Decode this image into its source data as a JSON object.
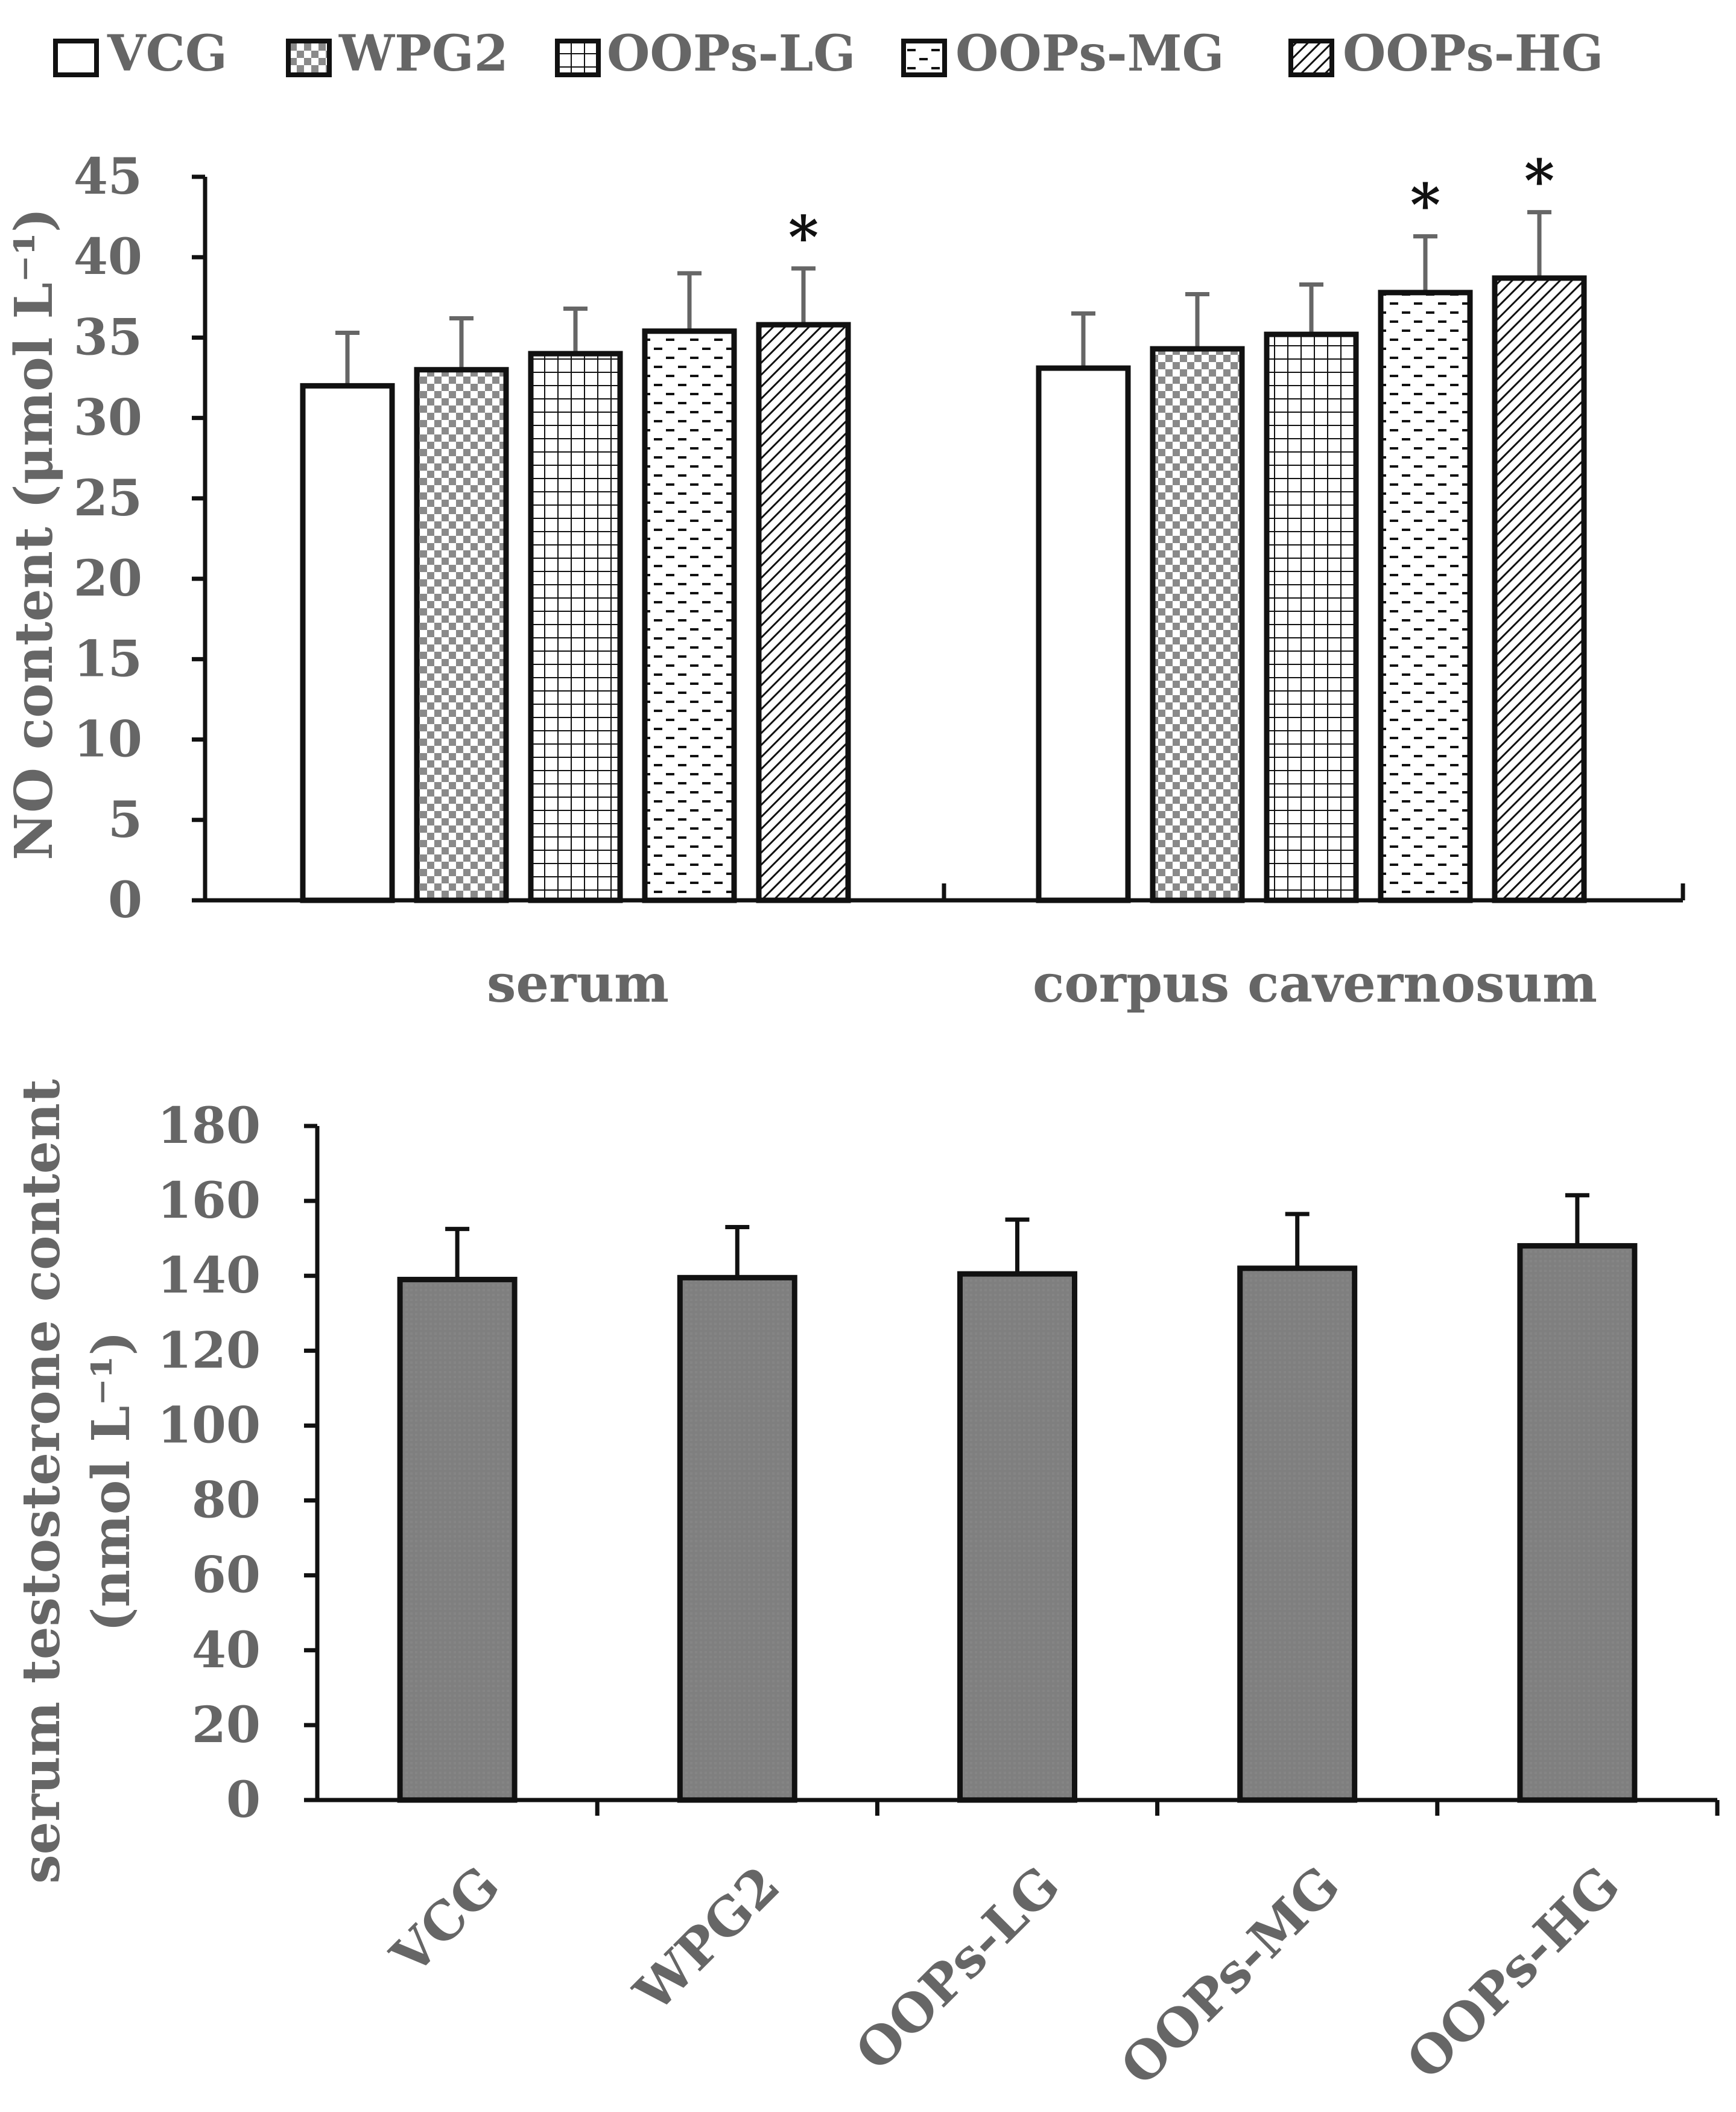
{
  "chart_data": [
    {
      "type": "bar",
      "ylabel": "NO content (μmol L⁻¹)",
      "ylim": [
        0,
        45
      ],
      "yticks": [
        "0",
        "5",
        "10",
        "15",
        "20",
        "25",
        "30",
        "35",
        "40",
        "45"
      ],
      "categories": [
        "serum",
        "corpus cavernosum"
      ],
      "legend": {
        "placement": "top",
        "entries": [
          "VCG",
          "WPG2",
          "OOPs-LG",
          "OOPs-MG",
          "OOPs-HG"
        ]
      },
      "series": [
        {
          "name": "VCG",
          "pattern": "blank",
          "values": [
            32.0,
            33.1
          ],
          "errors": [
            3.3,
            3.4
          ],
          "marks": [
            "",
            ""
          ]
        },
        {
          "name": "WPG2",
          "pattern": "checker",
          "values": [
            33.0,
            34.3
          ],
          "errors": [
            3.2,
            3.4
          ],
          "marks": [
            "",
            ""
          ]
        },
        {
          "name": "OOPs-LG",
          "pattern": "grid",
          "values": [
            34.0,
            35.2
          ],
          "errors": [
            2.8,
            3.1
          ],
          "marks": [
            "",
            ""
          ]
        },
        {
          "name": "OOPs-MG",
          "pattern": "dashes",
          "values": [
            35.4,
            37.8
          ],
          "errors": [
            3.6,
            3.5
          ],
          "marks": [
            "",
            "*"
          ]
        },
        {
          "name": "OOPs-HG",
          "pattern": "diagonal",
          "values": [
            35.8,
            38.7
          ],
          "errors": [
            3.5,
            4.1
          ],
          "marks": [
            "*",
            "*"
          ]
        }
      ]
    },
    {
      "type": "bar",
      "ylabel_line1": "serum testosterone content",
      "ylabel_line2": "(nmol L⁻¹)",
      "ylim": [
        0,
        180
      ],
      "yticks": [
        "0",
        "20",
        "40",
        "60",
        "80",
        "100",
        "120",
        "140",
        "160",
        "180"
      ],
      "categories": [
        "VCG",
        "WPG2",
        "OOPs-LG",
        "OOPs-MG",
        "OOPs-HG"
      ],
      "values": [
        139,
        139.5,
        140.5,
        142,
        148
      ],
      "errors": [
        13.5,
        13.5,
        14.5,
        14.5,
        13.5
      ],
      "bar_color": "#7f7f7f"
    }
  ]
}
